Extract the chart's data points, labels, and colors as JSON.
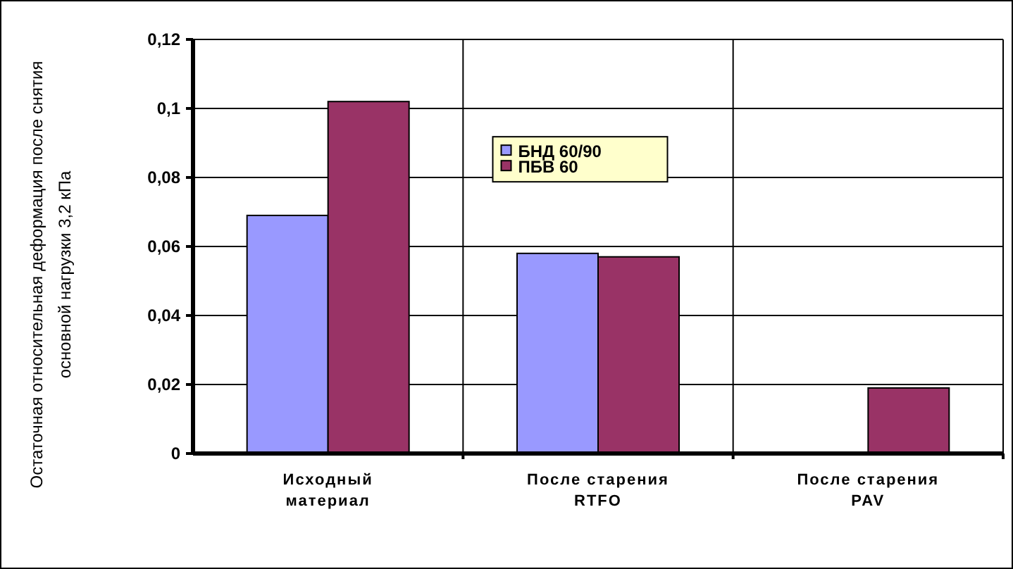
{
  "chart_data": {
    "type": "bar",
    "ylabel": "Остаточная относительная деформация после снятия основной нагрузки 3,2 кПа",
    "categories": [
      "Исходный материал",
      "После старения RTFO",
      "После старения PAV"
    ],
    "series": [
      {
        "name": "БНД 60/90",
        "color": "#9999ff",
        "values": [
          0.069,
          0.058,
          null
        ]
      },
      {
        "name": "ПБВ 60",
        "color": "#993366",
        "values": [
          0.102,
          0.057,
          0.019
        ]
      }
    ],
    "ylim": [
      0,
      0.12
    ],
    "yticks": [
      0,
      {
        "value": 0.02,
        "label": "0,02"
      },
      {
        "value": 0.04,
        "label": "0,04"
      },
      {
        "value": 0.06,
        "label": "0,06"
      },
      {
        "value": 0.08,
        "label": "0,08"
      },
      {
        "value": 0.1,
        "label": "0,1"
      },
      {
        "value": 0.12,
        "label": "0,12"
      }
    ],
    "grid": true,
    "legend": "top"
  }
}
